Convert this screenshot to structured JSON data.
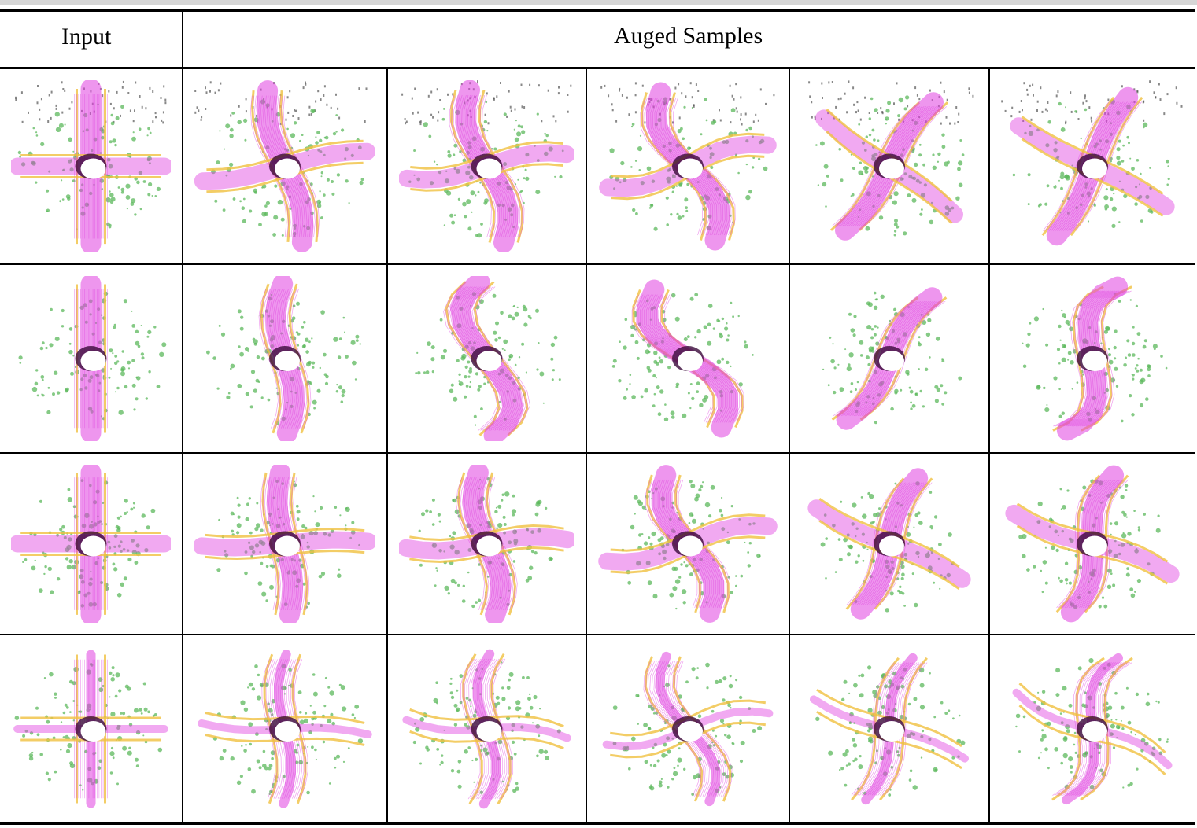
{
  "header": {
    "input_label": "Input",
    "augmented_label": "Auged Samples"
  },
  "rows": [
    {
      "scene": "dense-intersection",
      "cells": [
        {
          "rotation": 0,
          "curve": 0
        },
        {
          "rotation": -8,
          "curve": 14
        },
        {
          "rotation": -5,
          "curve": 22
        },
        {
          "rotation": -10,
          "curve": 30
        },
        {
          "rotation": 38,
          "curve": 10
        },
        {
          "rotation": 30,
          "curve": 8
        }
      ]
    },
    {
      "scene": "straight-road",
      "cells": [
        {
          "rotation": 0,
          "curve": 0
        },
        {
          "rotation": 4,
          "curve": 16
        },
        {
          "rotation": 10,
          "curve": 44
        },
        {
          "rotation": -12,
          "curve": 40
        },
        {
          "rotation": 40,
          "curve": 14
        },
        {
          "rotation": 32,
          "curve": 36
        }
      ]
    },
    {
      "scene": "cross-intersection",
      "cells": [
        {
          "rotation": 0,
          "curve": 0
        },
        {
          "rotation": 0,
          "curve": 10
        },
        {
          "rotation": 0,
          "curve": 18
        },
        {
          "rotation": -8,
          "curve": 26
        },
        {
          "rotation": 28,
          "curve": 12
        },
        {
          "rotation": 24,
          "curve": 18
        }
      ]
    },
    {
      "scene": "thin-cross",
      "cells": [
        {
          "rotation": 0,
          "curve": 0
        },
        {
          "rotation": 6,
          "curve": 14
        },
        {
          "rotation": 10,
          "curve": 22
        },
        {
          "rotation": -6,
          "curve": 30
        },
        {
          "rotation": 24,
          "curve": 16
        },
        {
          "rotation": 30,
          "curve": 28
        }
      ]
    }
  ],
  "colors": {
    "road": "#e040e0",
    "vegetation": "#5cb85c",
    "sidewalk": "#f0c040",
    "building": "#555555",
    "ego": "#ffffff"
  }
}
